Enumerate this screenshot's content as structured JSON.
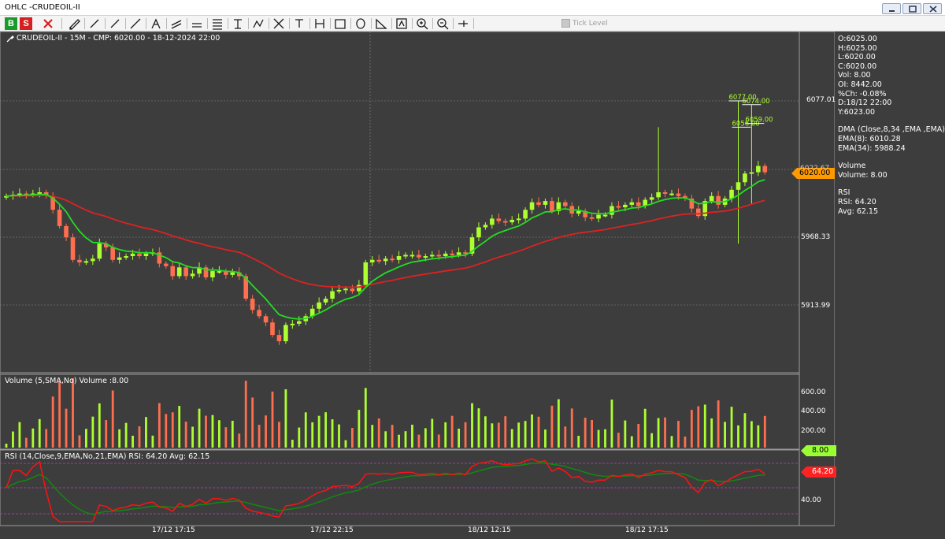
{
  "window": {
    "title": "OHLC -CRUDEOIL-II"
  },
  "toolbar": {
    "buy_label": "B",
    "sell_label": "S",
    "tick_level_label": "Tick Level",
    "tools": [
      "close-icon",
      "draw-icon",
      "trendline-icon",
      "ray-icon",
      "segment-icon",
      "fork-icon",
      "channel-icon",
      "hline-icon",
      "fibonacci-icon",
      "text-icon",
      "zigzag-icon",
      "gann-icon",
      "label-icon",
      "period-icon",
      "rectangle-icon",
      "ellipse-icon",
      "triangle-icon",
      "auto-icon",
      "zoom-in-icon",
      "zoom-out-icon",
      "pin-icon",
      "checkbox-icon"
    ]
  },
  "chart": {
    "header": "CRUDEOIL-II - 15M -  CMP: 6020.00 - 18-12-2024 22:00",
    "price_axis": [
      "6077.01",
      "5968.33",
      "5913.99"
    ],
    "price_hidden": "6022.67",
    "current_price": "6020.00",
    "annotations": [
      {
        "label": "6077.00"
      },
      {
        "label": "6056.00"
      },
      {
        "label": "6074.00"
      },
      {
        "label": "6059.00"
      }
    ],
    "volume_label": "Volume (5,SMA,No) Volume :8.00",
    "volume_axis": [
      "600.00",
      "400.00",
      "200.00"
    ],
    "volume_tag": "8.00",
    "rsi_label": "RSI (14,Close,9,EMA,No,21,EMA) RSI: 64.20 Avg: 62.15",
    "rsi_axis": [
      "40.00"
    ],
    "rsi_tag": "64.20",
    "time_labels": [
      "17/12 17:15",
      "17/12 22:15",
      "18/12 12:15",
      "18/12 17:15"
    ]
  },
  "info": {
    "ohlc": [
      "O:6025.00",
      "H:6025.00",
      "L:6020.00",
      "C:6020.00",
      "Vol: 8.00",
      "OI: 8442.00",
      "%Ch: -0.08%",
      "D:18/12 22:00",
      "Y:6023.00"
    ],
    "dma": [
      "DMA (Close,8,34 ,EMA ,EMA)",
      "EMA(8): 6010.28",
      "EMA(34): 5988.24"
    ],
    "volume": [
      "Volume",
      "Volume: 8.00"
    ],
    "rsi": [
      "RSI",
      "RSI: 64.20",
      "Avg: 62.15"
    ]
  },
  "colors": {
    "up": "#adff2f",
    "down": "#ff6f4f",
    "ema_fast": "#22dd22",
    "ema_slow": "#dd2222",
    "rsi": "#ff1111",
    "rsi_avg": "#118811",
    "tag_price": "#ff9900",
    "tag_volume": "#99ff33",
    "tag_rsi": "#ff2222"
  },
  "chart_data": {
    "type": "candlestick",
    "interval": "15M",
    "price_ticks": [
      6077.01,
      5968.33,
      5913.99
    ],
    "candles_close": [
      6001,
      6002,
      6003,
      6002,
      6003,
      6004,
      6001,
      5990,
      5977,
      5968,
      5950,
      5948,
      5949,
      5951,
      5963,
      5960,
      5950,
      5952,
      5953,
      5955,
      5953,
      5955,
      5956,
      5947,
      5945,
      5937,
      5944,
      5937,
      5939,
      5944,
      5936,
      5941,
      5941,
      5938,
      5940,
      5937,
      5919,
      5910,
      5905,
      5900,
      5890,
      5885,
      5898,
      5899,
      5901,
      5905,
      5911,
      5916,
      5919,
      5925,
      5926,
      5927,
      5925,
      5930,
      5948,
      5950,
      5949,
      5951,
      5950,
      5953,
      5954,
      5954,
      5952,
      5953,
      5954,
      5953,
      5955,
      5954,
      5956,
      5955,
      5968,
      5976,
      5978,
      5983,
      5981,
      5980,
      5982,
      5983,
      5990,
      5996,
      5994,
      5997,
      5989,
      5996,
      5993,
      5987,
      5989,
      5984,
      5983,
      5986,
      5986,
      5993,
      5992,
      5994,
      5996,
      5993,
      5998,
      6000,
      6004,
      6003,
      6003,
      6001,
      5999,
      5991,
      5985,
      5997,
      6001,
      5994,
      5999,
      6006,
      6012,
      6019,
      6020,
      6025,
      6020
    ],
    "ema_fast_label": "EMA(8): 6010.28",
    "ema_slow_label": "EMA(34): 5988.24",
    "volume_ticks": [
      600,
      400,
      200
    ],
    "rsi_ticks": [
      40
    ],
    "rsi_last": 64.2,
    "rsi_avg_last": 62.15
  }
}
